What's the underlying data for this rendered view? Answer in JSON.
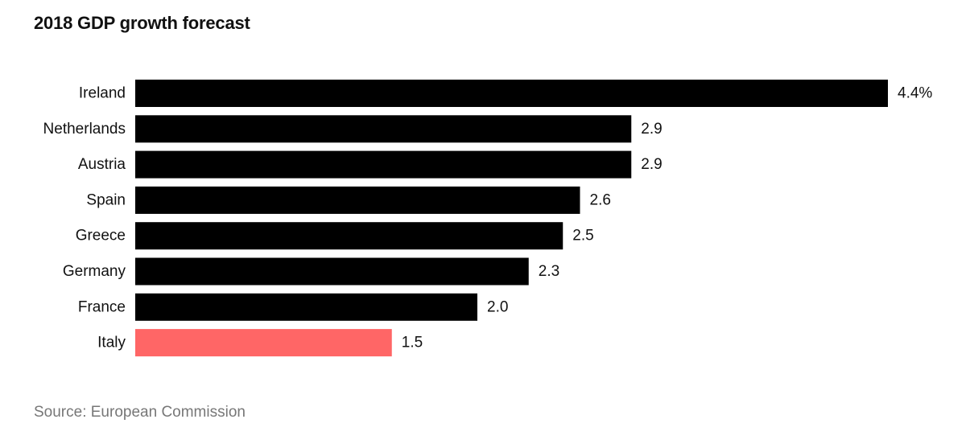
{
  "chart_data": {
    "type": "bar",
    "orientation": "horizontal",
    "title": "2018 GDP growth forecast",
    "source": "Source: European Commission",
    "categories": [
      "Ireland",
      "Netherlands",
      "Austria",
      "Spain",
      "Greece",
      "Germany",
      "France",
      "Italy"
    ],
    "values": [
      4.4,
      2.9,
      2.9,
      2.6,
      2.5,
      2.3,
      2.0,
      1.5
    ],
    "value_labels": [
      "4.4%",
      "2.9",
      "2.9",
      "2.6",
      "2.5",
      "2.3",
      "2.0",
      "1.5"
    ],
    "bar_colors": [
      "#000000",
      "#000000",
      "#000000",
      "#000000",
      "#000000",
      "#000000",
      "#000000",
      "#ff6666"
    ],
    "xlim": [
      0,
      4.4
    ],
    "xlabel": "",
    "ylabel": "",
    "grid": false
  }
}
